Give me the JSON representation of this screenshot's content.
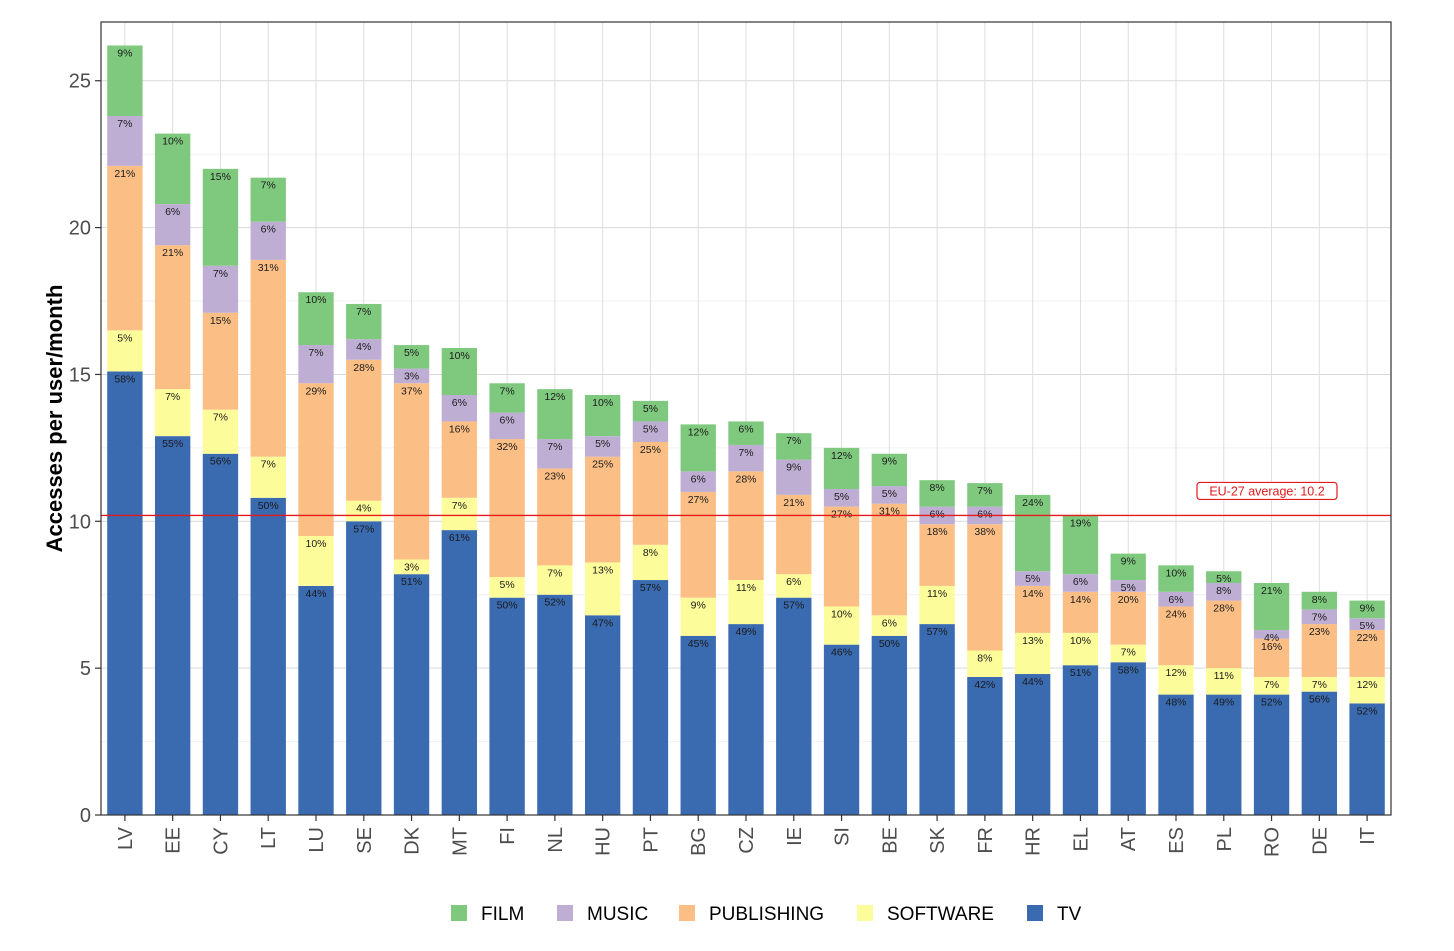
{
  "chart_data": {
    "type": "bar",
    "stacked": true,
    "ylabel": "Accesses per user/month",
    "xlabel": "",
    "ylim": [
      0,
      27
    ],
    "yticks": [
      0,
      5,
      10,
      15,
      20,
      25
    ],
    "grid": true,
    "legend_position": "bottom",
    "categories": [
      "LV",
      "EE",
      "CY",
      "LT",
      "LU",
      "SE",
      "DK",
      "MT",
      "FI",
      "NL",
      "HU",
      "PT",
      "BG",
      "CZ",
      "IE",
      "SI",
      "BE",
      "SK",
      "FR",
      "HR",
      "EL",
      "AT",
      "ES",
      "PL",
      "RO",
      "DE",
      "IT"
    ],
    "series": [
      {
        "name": "TV",
        "color": "#3a6bb0",
        "values": [
          15.1,
          12.9,
          12.3,
          10.8,
          7.8,
          10.0,
          8.2,
          9.7,
          7.4,
          7.5,
          6.8,
          8.0,
          6.1,
          6.5,
          7.4,
          5.8,
          6.1,
          6.5,
          4.7,
          4.8,
          5.1,
          5.2,
          4.1,
          4.1,
          4.1,
          4.2,
          3.8
        ],
        "labels": [
          "58%",
          "55%",
          "56%",
          "50%",
          "44%",
          "57%",
          "51%",
          "61%",
          "50%",
          "52%",
          "47%",
          "57%",
          "45%",
          "49%",
          "57%",
          "46%",
          "50%",
          "57%",
          "42%",
          "44%",
          "51%",
          "58%",
          "48%",
          "49%",
          "52%",
          "56%",
          "52%"
        ]
      },
      {
        "name": "SOFTWARE",
        "color": "#fdfc9a",
        "values": [
          1.4,
          1.6,
          1.5,
          1.4,
          1.7,
          0.7,
          0.5,
          1.1,
          0.7,
          1.0,
          1.8,
          1.2,
          1.3,
          1.5,
          0.8,
          1.3,
          0.7,
          1.3,
          0.9,
          1.4,
          1.1,
          0.6,
          1.0,
          0.9,
          0.6,
          0.5,
          0.9
        ],
        "labels": [
          "5%",
          "7%",
          "7%",
          "7%",
          "10%",
          "4%",
          "3%",
          "7%",
          "5%",
          "7%",
          "13%",
          "8%",
          "9%",
          "11%",
          "6%",
          "10%",
          "6%",
          "11%",
          "8%",
          "13%",
          "10%",
          "7%",
          "12%",
          "11%",
          "7%",
          "7%",
          "12%"
        ]
      },
      {
        "name": "PUBLISHING",
        "color": "#fbbf85",
        "values": [
          5.6,
          4.9,
          3.3,
          6.7,
          5.2,
          4.8,
          6.0,
          2.6,
          4.7,
          3.3,
          3.6,
          3.5,
          3.6,
          3.7,
          2.7,
          3.4,
          3.8,
          2.1,
          4.3,
          1.6,
          1.4,
          1.8,
          2.0,
          2.3,
          1.3,
          1.8,
          1.6
        ],
        "labels": [
          "21%",
          "21%",
          "15%",
          "31%",
          "29%",
          "28%",
          "37%",
          "16%",
          "32%",
          "23%",
          "25%",
          "25%",
          "27%",
          "28%",
          "21%",
          "27%",
          "31%",
          "18%",
          "38%",
          "14%",
          "14%",
          "20%",
          "24%",
          "28%",
          "16%",
          "23%",
          "22%"
        ]
      },
      {
        "name": "MUSIC",
        "color": "#bfaed4",
        "values": [
          1.7,
          1.4,
          1.6,
          1.3,
          1.3,
          0.7,
          0.5,
          0.9,
          0.9,
          1.0,
          0.7,
          0.7,
          0.7,
          0.9,
          1.2,
          0.6,
          0.6,
          0.6,
          0.6,
          0.5,
          0.6,
          0.4,
          0.5,
          0.6,
          0.3,
          0.5,
          0.4
        ],
        "labels": [
          "7%",
          "6%",
          "7%",
          "6%",
          "7%",
          "4%",
          "3%",
          "6%",
          "6%",
          "7%",
          "5%",
          "5%",
          "6%",
          "7%",
          "9%",
          "5%",
          "5%",
          "6%",
          "6%",
          "5%",
          "6%",
          "5%",
          "6%",
          "8%",
          "4%",
          "7%",
          "5%"
        ]
      },
      {
        "name": "FILM",
        "color": "#7fc97f",
        "values": [
          2.4,
          2.4,
          3.3,
          1.5,
          1.8,
          1.2,
          0.8,
          1.6,
          1.0,
          1.7,
          1.4,
          0.7,
          1.6,
          0.8,
          0.9,
          1.4,
          1.1,
          0.9,
          0.8,
          2.6,
          2.0,
          0.9,
          0.9,
          0.4,
          1.6,
          0.6,
          0.6
        ],
        "labels": [
          "9%",
          "10%",
          "15%",
          "7%",
          "10%",
          "7%",
          "5%",
          "10%",
          "7%",
          "12%",
          "10%",
          "5%",
          "12%",
          "6%",
          "7%",
          "12%",
          "9%",
          "8%",
          "7%",
          "24%",
          "19%",
          "9%",
          "10%",
          "5%",
          "21%",
          "8%",
          "9%"
        ]
      }
    ],
    "annotations": [
      {
        "type": "hline",
        "y": 10.2,
        "color": "#e41a1c",
        "label": "EU-27 average: 10.2"
      }
    ],
    "legend_order": [
      "FILM",
      "MUSIC",
      "PUBLISHING",
      "SOFTWARE",
      "TV"
    ]
  }
}
